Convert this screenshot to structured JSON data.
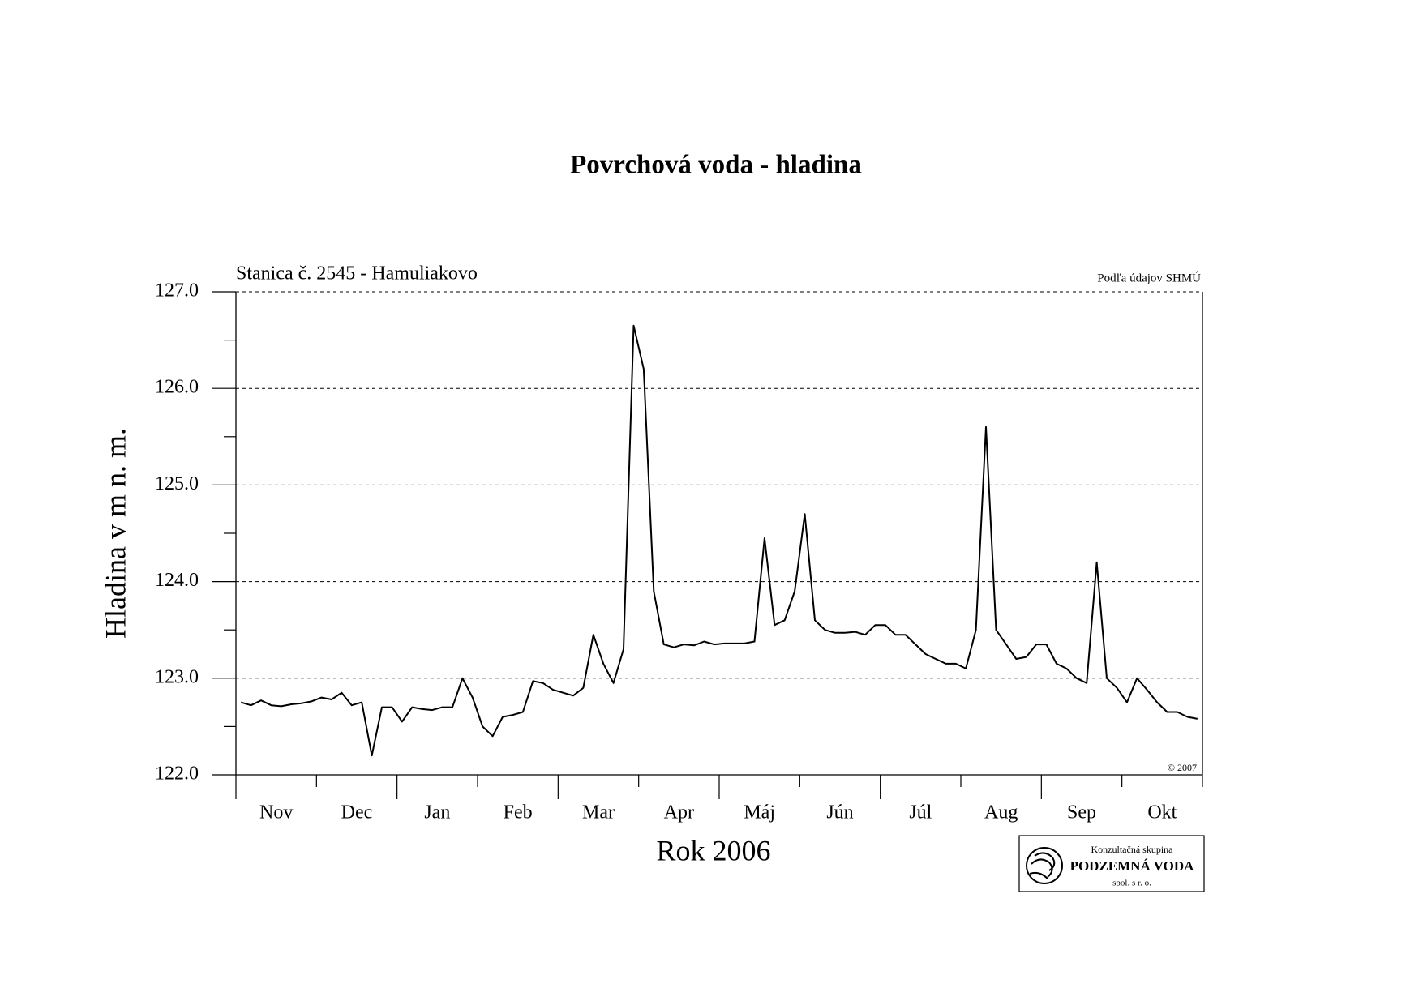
{
  "chart_data": {
    "type": "line",
    "title": "Povrchová voda - hladina",
    "subtitle": "Stanica č. 2545 - Hamuliakovo",
    "source": "Podľa údajov SHMÚ",
    "copyright": "© 2007",
    "y_label": "Hladina v m n. m.",
    "x_label": "Rok 2006",
    "logo": {
      "top": "Konzultačná skupina",
      "name": "PODZEMNÁ VODA",
      "bottom": "spol. s r. o."
    },
    "categories": [
      null,
      null,
      null,
      null,
      "Nov",
      null,
      null,
      null,
      null,
      null,
      null,
      null,
      "Dec",
      null,
      null,
      null,
      null,
      null,
      null,
      null,
      "Jan",
      null,
      null,
      null,
      null,
      null,
      null,
      null,
      "Feb",
      null,
      null,
      null,
      null,
      null,
      null,
      null,
      "Mar",
      null,
      null,
      null,
      null,
      null,
      null,
      null,
      "Apr",
      null,
      null,
      null,
      null,
      null,
      null,
      null,
      "Máj",
      null,
      null,
      null,
      null,
      null,
      null,
      null,
      "Jún",
      null,
      null,
      null,
      null,
      null,
      null,
      null,
      "Júl",
      null,
      null,
      null,
      null,
      null,
      null,
      null,
      "Aug",
      null,
      null,
      null,
      null,
      null,
      null,
      null,
      "Sep",
      null,
      null,
      null,
      null,
      null,
      null,
      null,
      "Okt",
      null,
      null,
      null
    ],
    "series": [
      {
        "color": "#000000",
        "values": [
          122.75,
          122.72,
          122.77,
          122.72,
          122.71,
          122.73,
          122.74,
          122.76,
          122.8,
          122.78,
          122.85,
          122.72,
          122.75,
          122.2,
          122.7,
          122.7,
          122.55,
          122.7,
          122.68,
          122.67,
          122.7,
          122.7,
          123.0,
          122.8,
          122.5,
          122.4,
          122.6,
          122.62,
          122.65,
          122.97,
          122.95,
          122.88,
          122.85,
          122.82,
          122.9,
          123.45,
          123.15,
          122.95,
          123.3,
          126.65,
          126.2,
          123.9,
          123.35,
          123.32,
          123.35,
          123.34,
          123.38,
          123.35,
          123.36,
          123.36,
          123.36,
          123.38,
          124.45,
          123.55,
          123.6,
          123.9,
          124.7,
          123.6,
          123.5,
          123.47,
          123.47,
          123.48,
          123.45,
          123.55,
          123.55,
          123.45,
          123.45,
          123.35,
          123.25,
          123.2,
          123.15,
          123.15,
          123.1,
          123.5,
          125.6,
          123.5,
          123.35,
          123.2,
          123.22,
          123.35,
          123.35,
          123.15,
          123.1,
          123.0,
          122.95,
          124.2,
          123.0,
          122.9,
          122.75,
          123.0,
          122.88,
          122.75,
          122.65,
          122.65,
          122.6,
          122.58
        ]
      }
    ],
    "ylim": [
      122,
      127
    ],
    "yticks": [
      {
        "value": 122,
        "label": "122.0"
      },
      {
        "value": 123,
        "label": "123.0"
      },
      {
        "value": 124,
        "label": "124.0"
      },
      {
        "value": 125,
        "label": "125.0"
      },
      {
        "value": 126,
        "label": "126.0"
      },
      {
        "value": 127,
        "label": "127.0"
      }
    ],
    "yminorticks": [
      122.5,
      123.5,
      124.5,
      125.5,
      126.5
    ],
    "grid": true
  }
}
